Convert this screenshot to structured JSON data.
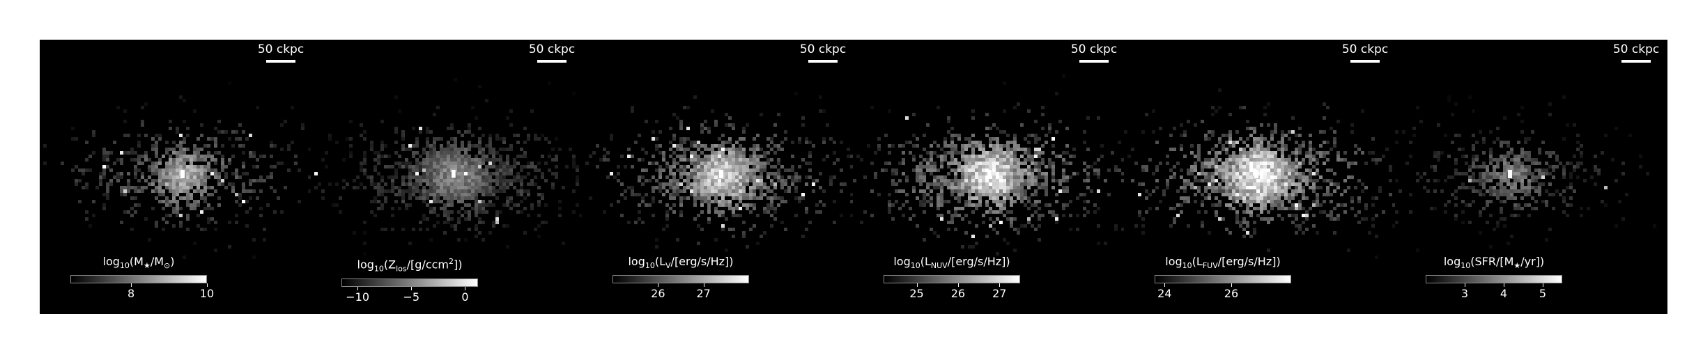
{
  "scale_label": "50 ckpc",
  "panels": [
    {
      "id": "stellar-mass",
      "colorbar": {
        "pre": "log",
        "sub1": "10",
        "mid1": "(M",
        "sub2": "★",
        "mid2": "/M",
        "sub3": "⊙",
        "sup": "",
        "post": ")",
        "min": 6.4,
        "max": 10,
        "ticks": [
          {
            "v": 8,
            "label": "8"
          },
          {
            "v": 10,
            "label": "10"
          }
        ]
      },
      "density": 0.55,
      "brightness": 0.55,
      "hotspot": 1.0
    },
    {
      "id": "metallicity",
      "colorbar": {
        "pre": "log",
        "sub1": "10",
        "mid1": "(Z",
        "sub2": "los",
        "mid2": "/[g/ccm",
        "sub3": "",
        "sup": "2",
        "post": "])",
        "min": -11.5,
        "max": 1.2,
        "ticks": [
          {
            "v": -10,
            "label": "−10"
          },
          {
            "v": -5,
            "label": "−5"
          },
          {
            "v": 0,
            "label": "0"
          }
        ]
      },
      "density": 0.85,
      "brightness": 0.45,
      "hotspot": 0.95
    },
    {
      "id": "v-band",
      "colorbar": {
        "pre": "log",
        "sub1": "10",
        "mid1": "(L",
        "sub2": "V",
        "mid2": "/[erg/s/Hz])",
        "sub3": "",
        "sup": "",
        "post": "",
        "min": 25.0,
        "max": 28.0,
        "ticks": [
          {
            "v": 26,
            "label": "26"
          },
          {
            "v": 27,
            "label": "27"
          }
        ]
      },
      "density": 0.8,
      "brightness": 0.7,
      "hotspot": 1.0
    },
    {
      "id": "nuv",
      "colorbar": {
        "pre": "log",
        "sub1": "10",
        "mid1": "(L",
        "sub2": "NUV",
        "mid2": "/[erg/s/Hz])",
        "sub3": "",
        "sup": "",
        "post": "",
        "min": 24.2,
        "max": 27.5,
        "ticks": [
          {
            "v": 25,
            "label": "25"
          },
          {
            "v": 26,
            "label": "26"
          },
          {
            "v": 27,
            "label": "27"
          }
        ]
      },
      "density": 0.85,
      "brightness": 0.78,
      "hotspot": 1.0
    },
    {
      "id": "fuv",
      "colorbar": {
        "pre": "log",
        "sub1": "10",
        "mid1": "(L",
        "sub2": "FUV",
        "mid2": "/[erg/s/Hz])",
        "sub3": "",
        "sup": "",
        "post": "",
        "min": 23.7,
        "max": 27.8,
        "ticks": [
          {
            "v": 24,
            "label": "24"
          },
          {
            "v": 26,
            "label": "26"
          }
        ]
      },
      "density": 0.88,
      "brightness": 0.82,
      "hotspot": 1.0
    },
    {
      "id": "sfr",
      "colorbar": {
        "pre": "log",
        "sub1": "10",
        "mid1": "(SFR/[M",
        "sub2": "★",
        "mid2": "/yr])",
        "sub3": "",
        "sup": "",
        "post": "",
        "min": 2.0,
        "max": 5.5,
        "ticks": [
          {
            "v": 3,
            "label": "3"
          },
          {
            "v": 4,
            "label": "4"
          },
          {
            "v": 5,
            "label": "5"
          }
        ]
      },
      "density": 0.35,
      "brightness": 0.4,
      "hotspot": 1.0
    }
  ]
}
